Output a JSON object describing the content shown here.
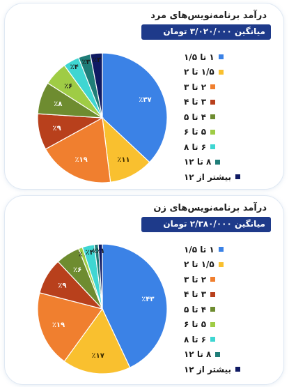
{
  "palette": [
    "#3b82e6",
    "#f9c02f",
    "#f07f2f",
    "#b8401c",
    "#6e8c30",
    "#9fcc45",
    "#3fd6d2",
    "#1f7d78",
    "#0f1a63"
  ],
  "legend_labels": [
    "۱ تا ۱/۵",
    "۱/۵ تا ۲",
    "۲ تا ۳",
    "۳ تا ۴",
    "۴ تا ۵",
    "۵ تا ۶",
    "۶ تا ۸",
    "۸ تا ۱۲",
    "بیشتر از ۱۲"
  ],
  "chart_data": [
    {
      "type": "pie",
      "title": "درآمد برنامه‌نویس‌های مرد",
      "subtitle": "میانگین ۳/۰۲۰/۰۰۰ تومان",
      "categories": [
        "۱ تا ۱/۵",
        "۱/۵ تا ۲",
        "۲ تا ۳",
        "۳ تا ۴",
        "۴ تا ۵",
        "۵ تا ۶",
        "۶ تا ۸",
        "۸ تا ۱۲",
        "بیشتر از ۱۲"
      ],
      "values": [
        37,
        11,
        19,
        9,
        8,
        6,
        4,
        3,
        3
      ],
      "labels": [
        "٪۳۷",
        "٪۱۱",
        "٪۱۹",
        "٪۹",
        "٪۸",
        "٪۶",
        "٪۴",
        "٪۳",
        "٪۳"
      ],
      "legend_position": "right"
    },
    {
      "type": "pie",
      "title": "درآمد برنامه‌نویس‌های زن",
      "subtitle": "میانگین ۲/۳۸۰/۰۰۰ تومان",
      "categories": [
        "۱ تا ۱/۵",
        "۱/۵ تا ۲",
        "۲ تا ۳",
        "۳ تا ۴",
        "۴ تا ۵",
        "۵ تا ۶",
        "۶ تا ۸",
        "۸ تا ۱۲",
        "بیشتر از ۱۲"
      ],
      "values": [
        43,
        17,
        19,
        9,
        6,
        1,
        3,
        1,
        1
      ],
      "labels": [
        "٪۴۳",
        "٪۱۷",
        "٪۱۹",
        "٪۹",
        "٪۶",
        "٪۱",
        "٪۳",
        "٪۱",
        "٪۱"
      ],
      "legend_position": "right"
    }
  ]
}
